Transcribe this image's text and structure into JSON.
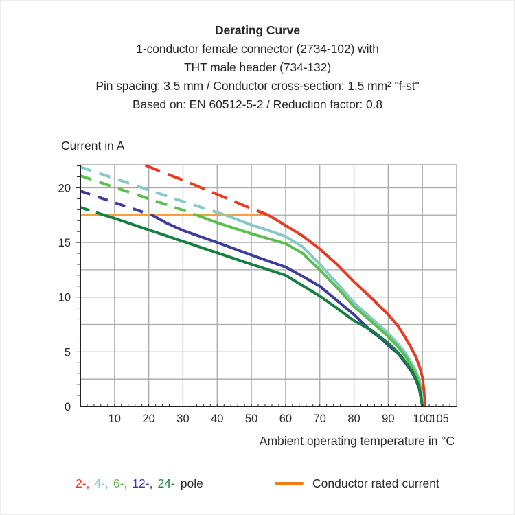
{
  "header": {
    "title": "Derating Curve",
    "subtitle_lines": [
      "1-conductor female connector (2734-102) with",
      "THT male header (734-132)",
      "Pin spacing: 3.5 mm / Conductor cross-section: 1.5 mm² \"f-st\"",
      "Based on: EN 60512-5-2 / Reduction factor: 0.8"
    ]
  },
  "legend": {
    "pole_items": [
      {
        "text": "2-,",
        "color": "#E63C23"
      },
      {
        "text": "4-,",
        "color": "#85C9C8"
      },
      {
        "text": "6-,",
        "color": "#5CBE4E"
      },
      {
        "text": "12-,",
        "color": "#3C3C9B"
      },
      {
        "text": "24-",
        "color": "#157F42"
      }
    ],
    "pole_suffix": "pole",
    "rated_label": "Conductor rated current",
    "rated_swatch_color": "#EE7D16"
  },
  "chart_data": {
    "type": "line",
    "title": "Derating Curve",
    "xlabel": "Ambient operating temperature in °C",
    "ylabel": "Current in A",
    "xlim": [
      0,
      110
    ],
    "ylim": [
      0,
      22.1
    ],
    "grid": true,
    "legend_position": "bottom",
    "x_gridlines": [
      10,
      20,
      30,
      40,
      50,
      60,
      70,
      80,
      90,
      100
    ],
    "x_major_ticks": [
      10,
      20,
      30,
      40,
      50,
      60,
      70,
      80,
      90,
      100,
      105
    ],
    "x_minor_tick_step": 2,
    "y_label_ticks": [
      0,
      5,
      10,
      15,
      20
    ],
    "y_gridline_step": 2.5,
    "y_gridline_max": 20,
    "y_minor_tick_step": 1,
    "y_minor_tick_max": 22,
    "colors": {
      "grid": "#A8A8A8",
      "axis": "#222222",
      "text": "#2A2A2A"
    },
    "rated_current_line": {
      "label": "Conductor rated current",
      "value": 17.5,
      "x_start": 0,
      "x_end": 55,
      "color": "#F2A140"
    },
    "series": [
      {
        "name": "2-pole",
        "color": "#E63C23",
        "dash_pattern": "23 12",
        "dashed_points": [
          [
            19,
            22.05
          ],
          [
            25,
            21.3
          ],
          [
            30,
            20.7
          ],
          [
            35,
            20.05
          ],
          [
            40,
            19.4
          ],
          [
            45,
            18.75
          ],
          [
            50,
            18.1
          ],
          [
            55,
            17.5
          ]
        ],
        "solid_points": [
          [
            55,
            17.5
          ],
          [
            60,
            16.55
          ],
          [
            65,
            15.6
          ],
          [
            70,
            14.4
          ],
          [
            75,
            13.0
          ],
          [
            80,
            11.4
          ],
          [
            85,
            9.95
          ],
          [
            90,
            8.4
          ],
          [
            93,
            7.3
          ],
          [
            95,
            6.3
          ],
          [
            97,
            5.2
          ],
          [
            98,
            4.6
          ],
          [
            99,
            3.8
          ],
          [
            100,
            2.7
          ],
          [
            100.4,
            1.6
          ],
          [
            100.8,
            0
          ]
        ]
      },
      {
        "name": "4-pole",
        "color": "#85C9C8",
        "dash_pattern": "17 12",
        "dashed_points": [
          [
            0,
            21.9
          ],
          [
            10,
            20.85
          ],
          [
            20,
            19.8
          ],
          [
            30,
            18.75
          ],
          [
            40,
            17.75
          ],
          [
            42.5,
            17.5
          ]
        ],
        "solid_points": [
          [
            42.5,
            17.5
          ],
          [
            50,
            16.6
          ],
          [
            55,
            16.1
          ],
          [
            60,
            15.55
          ],
          [
            65,
            14.6
          ],
          [
            70,
            13.0
          ],
          [
            75,
            11.3
          ],
          [
            80,
            9.5
          ],
          [
            85,
            8.1
          ],
          [
            90,
            6.7
          ],
          [
            93,
            5.7
          ],
          [
            95,
            4.9
          ],
          [
            97,
            3.9
          ],
          [
            98,
            3.3
          ],
          [
            99,
            2.5
          ],
          [
            99.7,
            1.4
          ],
          [
            100.2,
            0
          ]
        ]
      },
      {
        "name": "6-pole",
        "color": "#5CBE4E",
        "dash_pattern": "17 12",
        "dashed_points": [
          [
            0,
            21.1
          ],
          [
            10,
            20.05
          ],
          [
            20,
            19.0
          ],
          [
            30,
            17.95
          ],
          [
            34,
            17.5
          ]
        ],
        "solid_points": [
          [
            34,
            17.5
          ],
          [
            40,
            16.8
          ],
          [
            50,
            15.8
          ],
          [
            55,
            15.35
          ],
          [
            60,
            14.9
          ],
          [
            65,
            14.0
          ],
          [
            70,
            12.5
          ],
          [
            75,
            10.9
          ],
          [
            80,
            9.15
          ],
          [
            85,
            7.8
          ],
          [
            90,
            6.4
          ],
          [
            93,
            5.4
          ],
          [
            95,
            4.6
          ],
          [
            97,
            3.6
          ],
          [
            98,
            3.0
          ],
          [
            99,
            2.2
          ],
          [
            99.6,
            1.2
          ],
          [
            100,
            0
          ]
        ]
      },
      {
        "name": "12-pole",
        "color": "#3C3C9B",
        "dash_pattern": "15 12",
        "dashed_points": [
          [
            0,
            19.7
          ],
          [
            10,
            18.65
          ],
          [
            20,
            17.6
          ],
          [
            21,
            17.5
          ]
        ],
        "solid_points": [
          [
            21,
            17.5
          ],
          [
            25,
            16.8
          ],
          [
            30,
            16.1
          ],
          [
            40,
            15.0
          ],
          [
            50,
            13.85
          ],
          [
            55,
            13.3
          ],
          [
            60,
            12.75
          ],
          [
            65,
            11.9
          ],
          [
            70,
            11.0
          ],
          [
            75,
            9.7
          ],
          [
            80,
            8.4
          ],
          [
            85,
            6.9
          ],
          [
            88,
            6.2
          ],
          [
            90,
            5.6
          ],
          [
            93,
            4.8
          ],
          [
            95,
            4.0
          ],
          [
            97,
            3.1
          ],
          [
            98,
            2.5
          ],
          [
            99,
            1.7
          ],
          [
            99.6,
            0.8
          ],
          [
            100,
            0
          ]
        ]
      },
      {
        "name": "24-pole",
        "color": "#157F42",
        "dash_pattern": "14 10",
        "dashed_points": [
          [
            0,
            18.2
          ],
          [
            7,
            17.5
          ]
        ],
        "solid_points": [
          [
            7,
            17.5
          ],
          [
            10,
            17.2
          ],
          [
            20,
            16.15
          ],
          [
            30,
            15.1
          ],
          [
            40,
            14.05
          ],
          [
            50,
            13.0
          ],
          [
            55,
            12.5
          ],
          [
            60,
            12.0
          ],
          [
            65,
            11.05
          ],
          [
            70,
            10.1
          ],
          [
            75,
            9.0
          ],
          [
            80,
            7.85
          ],
          [
            85,
            7.0
          ],
          [
            90,
            5.8
          ],
          [
            93,
            4.9
          ],
          [
            95,
            4.1
          ],
          [
            97,
            3.2
          ],
          [
            98,
            2.6
          ],
          [
            99,
            1.8
          ],
          [
            99.5,
            0.9
          ],
          [
            100,
            0
          ]
        ]
      }
    ]
  }
}
